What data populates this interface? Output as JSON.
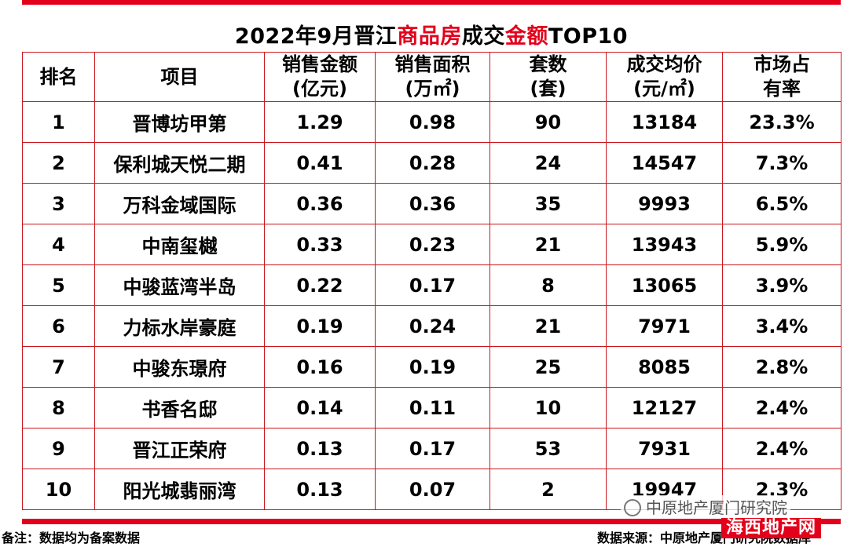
{
  "title": {
    "part1": "2022年9月晋江",
    "part2": "商品房",
    "part3": "成交",
    "part4": "金额",
    "part5": "TOP10"
  },
  "header": {
    "rank": "排名",
    "project": "项目",
    "amount_line1": "销售金额",
    "amount_line2": "(亿元)",
    "area_line1": "销售面积",
    "area_line2": "(万㎡)",
    "units_line1": "套数",
    "units_line2": "(套)",
    "price_line1": "成交均价",
    "price_line2": "(元/㎡)",
    "share_line1": "市场占",
    "share_line2": "有率"
  },
  "rows": [
    {
      "rank": "1",
      "project": "晋博坊甲第",
      "amount": "1.29",
      "area": "0.98",
      "units": "90",
      "price": "13184",
      "share": "23.3%"
    },
    {
      "rank": "2",
      "project": "保利城天悦二期",
      "amount": "0.41",
      "area": "0.28",
      "units": "24",
      "price": "14547",
      "share": "7.3%"
    },
    {
      "rank": "3",
      "project": "万科金域国际",
      "amount": "0.36",
      "area": "0.36",
      "units": "35",
      "price": "9993",
      "share": "6.5%"
    },
    {
      "rank": "4",
      "project": "中南玺樾",
      "amount": "0.33",
      "area": "0.23",
      "units": "21",
      "price": "13943",
      "share": "5.9%"
    },
    {
      "rank": "5",
      "project": "中骏蓝湾半岛",
      "amount": "0.22",
      "area": "0.17",
      "units": "8",
      "price": "13065",
      "share": "3.9%"
    },
    {
      "rank": "6",
      "project": "力标水岸豪庭",
      "amount": "0.19",
      "area": "0.24",
      "units": "21",
      "price": "7971",
      "share": "3.4%"
    },
    {
      "rank": "7",
      "project": "中骏东璟府",
      "amount": "0.16",
      "area": "0.19",
      "units": "25",
      "price": "8085",
      "share": "2.8%"
    },
    {
      "rank": "8",
      "project": "书香名邸",
      "amount": "0.14",
      "area": "0.11",
      "units": "10",
      "price": "12127",
      "share": "2.4%"
    },
    {
      "rank": "9",
      "project": "晋江正荣府",
      "amount": "0.13",
      "area": "0.17",
      "units": "53",
      "price": "7931",
      "share": "2.4%"
    },
    {
      "rank": "10",
      "project": "阳光城翡丽湾",
      "amount": "0.13",
      "area": "0.07",
      "units": "2",
      "price": "19947",
      "share": "2.3%"
    }
  ],
  "footer": {
    "note": "备注：数据均为备案数据",
    "source": "数据来源：中原地产厦门研究院数据库"
  },
  "watermark": {
    "account": "中原地产厦门研究院",
    "badge": "海西地产网"
  },
  "colors": {
    "accent": "#e3001b",
    "grid": "#c9171e"
  }
}
